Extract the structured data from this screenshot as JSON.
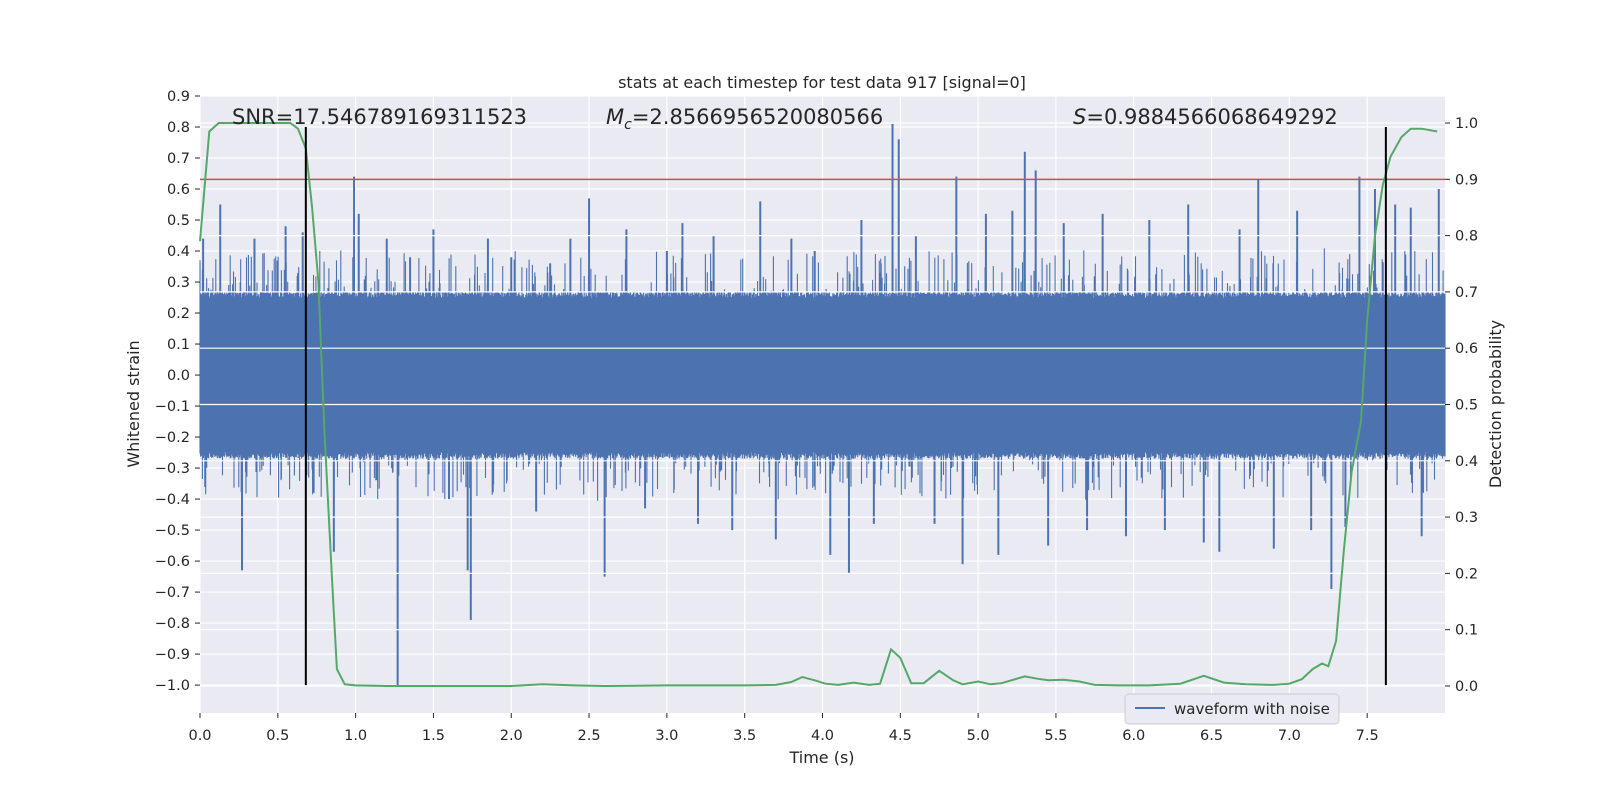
{
  "chart_data": {
    "type": "line",
    "title": "stats at each timestep for test data 917 [signal=0]",
    "xlabel": "Time (s)",
    "ylabel": "Whitened strain",
    "y2label": "Detection probability",
    "xlim": [
      0,
      8.0
    ],
    "ylim": [
      -1.09,
      0.9
    ],
    "y2lim": [
      -0.048,
      1.048
    ],
    "grid": true,
    "x_ticks": [
      0.0,
      0.5,
      1.0,
      1.5,
      2.0,
      2.5,
      3.0,
      3.5,
      4.0,
      4.5,
      5.0,
      5.5,
      6.0,
      6.5,
      7.0,
      7.5
    ],
    "x_tick_labels": [
      "0.0",
      "0.5",
      "1.0",
      "1.5",
      "2.0",
      "2.5",
      "3.0",
      "3.5",
      "4.0",
      "4.5",
      "5.0",
      "5.5",
      "6.0",
      "6.5",
      "7.0",
      "7.5"
    ],
    "y_ticks": [
      0.9,
      0.8,
      0.7,
      0.6,
      0.5,
      0.4,
      0.3,
      0.2,
      0.1,
      0.0,
      -0.1,
      -0.2,
      -0.3,
      -0.4,
      -0.5,
      -0.6,
      -0.7,
      -0.8,
      -0.9,
      -1.0
    ],
    "y_tick_labels": [
      "0.9",
      "0.8",
      "0.7",
      "0.6",
      "0.5",
      "0.4",
      "0.3",
      "0.2",
      "0.1",
      "0.0",
      "−0.1",
      "−0.2",
      "−0.3",
      "−0.4",
      "−0.5",
      "−0.6",
      "−0.7",
      "−0.8",
      "−0.9",
      "−1.0"
    ],
    "y2_ticks": [
      1.0,
      0.9,
      0.8,
      0.7,
      0.6,
      0.5,
      0.4,
      0.3,
      0.2,
      0.1,
      0.0
    ],
    "y2_tick_labels": [
      "1.0",
      "0.9",
      "0.8",
      "0.7",
      "0.6",
      "0.5",
      "0.4",
      "0.3",
      "0.2",
      "0.1",
      "0.0"
    ],
    "annotations": {
      "snr_label": "SNR=17.546789169311523",
      "mc_symbol": "M",
      "mc_subscript": "c",
      "mc_value": "=2.8566956520080566",
      "s_symbol": "S",
      "s_value": "=0.9884566068649292"
    },
    "threshold": {
      "axis": "y2",
      "value": 0.9,
      "color": "#c44e52"
    },
    "vertical_markers": {
      "x": [
        0.68,
        7.62
      ],
      "y_from": -1.0,
      "y_to": 0.8,
      "color": "#000000"
    },
    "legend": {
      "entries": [
        "waveform with noise"
      ],
      "location": "lower-right"
    },
    "waveform": {
      "name": "waveform with noise",
      "color": "#4c72b0",
      "band": 0.27,
      "spikes": [
        {
          "x": 0.02,
          "y": 0.44
        },
        {
          "x": 0.13,
          "y": 0.55
        },
        {
          "x": 0.27,
          "y": -0.63
        },
        {
          "x": 0.35,
          "y": 0.44
        },
        {
          "x": 0.55,
          "y": 0.48
        },
        {
          "x": 0.66,
          "y": 0.46
        },
        {
          "x": 0.73,
          "y": -0.38
        },
        {
          "x": 0.86,
          "y": -0.57
        },
        {
          "x": 0.99,
          "y": 0.64
        },
        {
          "x": 1.02,
          "y": 0.52
        },
        {
          "x": 1.27,
          "y": -1.0
        },
        {
          "x": 1.2,
          "y": 0.44
        },
        {
          "x": 1.35,
          "y": 0.38
        },
        {
          "x": 1.5,
          "y": 0.47
        },
        {
          "x": 1.6,
          "y": -0.4
        },
        {
          "x": 1.72,
          "y": -0.63
        },
        {
          "x": 1.74,
          "y": -0.79
        },
        {
          "x": 1.85,
          "y": 0.44
        },
        {
          "x": 2.0,
          "y": 0.38
        },
        {
          "x": 2.16,
          "y": -0.44
        },
        {
          "x": 2.25,
          "y": 0.36
        },
        {
          "x": 2.38,
          "y": 0.44
        },
        {
          "x": 2.5,
          "y": 0.57
        },
        {
          "x": 2.6,
          "y": -0.65
        },
        {
          "x": 2.74,
          "y": 0.47
        },
        {
          "x": 2.86,
          "y": -0.43
        },
        {
          "x": 3.0,
          "y": 0.4
        },
        {
          "x": 3.1,
          "y": 0.49
        },
        {
          "x": 3.2,
          "y": -0.48
        },
        {
          "x": 3.3,
          "y": 0.45
        },
        {
          "x": 3.42,
          "y": -0.5
        },
        {
          "x": 3.6,
          "y": 0.56
        },
        {
          "x": 3.7,
          "y": -0.53
        },
        {
          "x": 3.8,
          "y": 0.44
        },
        {
          "x": 3.95,
          "y": 0.4
        },
        {
          "x": 4.05,
          "y": -0.58
        },
        {
          "x": 4.17,
          "y": -0.64
        },
        {
          "x": 4.25,
          "y": 0.5
        },
        {
          "x": 4.33,
          "y": -0.48
        },
        {
          "x": 4.45,
          "y": 0.81
        },
        {
          "x": 4.49,
          "y": 0.76
        },
        {
          "x": 4.6,
          "y": 0.45
        },
        {
          "x": 4.72,
          "y": -0.48
        },
        {
          "x": 4.86,
          "y": 0.64
        },
        {
          "x": 4.9,
          "y": -0.61
        },
        {
          "x": 5.05,
          "y": 0.52
        },
        {
          "x": 5.13,
          "y": -0.58
        },
        {
          "x": 5.22,
          "y": 0.53
        },
        {
          "x": 5.3,
          "y": 0.72
        },
        {
          "x": 5.37,
          "y": 0.66
        },
        {
          "x": 5.45,
          "y": -0.55
        },
        {
          "x": 5.55,
          "y": 0.49
        },
        {
          "x": 5.7,
          "y": -0.5
        },
        {
          "x": 5.8,
          "y": 0.52
        },
        {
          "x": 5.95,
          "y": -0.52
        },
        {
          "x": 6.1,
          "y": 0.5
        },
        {
          "x": 6.2,
          "y": -0.5
        },
        {
          "x": 6.35,
          "y": 0.55
        },
        {
          "x": 6.45,
          "y": -0.54
        },
        {
          "x": 6.55,
          "y": -0.57
        },
        {
          "x": 6.68,
          "y": 0.47
        },
        {
          "x": 6.8,
          "y": 0.63
        },
        {
          "x": 6.9,
          "y": -0.56
        },
        {
          "x": 7.05,
          "y": 0.53
        },
        {
          "x": 7.14,
          "y": -0.5
        },
        {
          "x": 7.27,
          "y": -0.69
        },
        {
          "x": 7.36,
          "y": -0.49
        },
        {
          "x": 7.45,
          "y": 0.64
        },
        {
          "x": 7.55,
          "y": 0.6
        },
        {
          "x": 7.68,
          "y": 0.55
        },
        {
          "x": 7.78,
          "y": 0.54
        },
        {
          "x": 7.85,
          "y": -0.52
        },
        {
          "x": 7.96,
          "y": 0.6
        }
      ]
    },
    "series": [
      {
        "name": "detection probability",
        "axis": "y2",
        "color": "#55a868",
        "points": [
          [
            0.0,
            0.79
          ],
          [
            0.06,
            0.985
          ],
          [
            0.12,
            1.0
          ],
          [
            0.2,
            1.0
          ],
          [
            0.3,
            1.0
          ],
          [
            0.4,
            1.0
          ],
          [
            0.5,
            1.0
          ],
          [
            0.58,
            1.0
          ],
          [
            0.63,
            0.99
          ],
          [
            0.68,
            0.955
          ],
          [
            0.72,
            0.85
          ],
          [
            0.76,
            0.72
          ],
          [
            0.8,
            0.45
          ],
          [
            0.85,
            0.18
          ],
          [
            0.88,
            0.03
          ],
          [
            0.93,
            0.003
          ],
          [
            1.0,
            0.001
          ],
          [
            1.2,
            0.0
          ],
          [
            1.5,
            0.0
          ],
          [
            2.0,
            0.0
          ],
          [
            2.2,
            0.003
          ],
          [
            2.4,
            0.001
          ],
          [
            2.6,
            0.0
          ],
          [
            3.0,
            0.001
          ],
          [
            3.5,
            0.001
          ],
          [
            3.7,
            0.002
          ],
          [
            3.8,
            0.007
          ],
          [
            3.87,
            0.016
          ],
          [
            3.95,
            0.01
          ],
          [
            4.02,
            0.004
          ],
          [
            4.1,
            0.002
          ],
          [
            4.2,
            0.006
          ],
          [
            4.3,
            0.002
          ],
          [
            4.37,
            0.004
          ],
          [
            4.44,
            0.065
          ],
          [
            4.5,
            0.05
          ],
          [
            4.57,
            0.005
          ],
          [
            4.65,
            0.005
          ],
          [
            4.75,
            0.027
          ],
          [
            4.84,
            0.01
          ],
          [
            4.9,
            0.003
          ],
          [
            5.0,
            0.008
          ],
          [
            5.08,
            0.003
          ],
          [
            5.15,
            0.005
          ],
          [
            5.3,
            0.017
          ],
          [
            5.38,
            0.013
          ],
          [
            5.45,
            0.01
          ],
          [
            5.55,
            0.011
          ],
          [
            5.65,
            0.008
          ],
          [
            5.75,
            0.002
          ],
          [
            5.9,
            0.001
          ],
          [
            6.1,
            0.001
          ],
          [
            6.3,
            0.004
          ],
          [
            6.45,
            0.018
          ],
          [
            6.58,
            0.006
          ],
          [
            6.72,
            0.003
          ],
          [
            6.9,
            0.002
          ],
          [
            7.0,
            0.004
          ],
          [
            7.08,
            0.012
          ],
          [
            7.15,
            0.03
          ],
          [
            7.21,
            0.04
          ],
          [
            7.25,
            0.035
          ],
          [
            7.3,
            0.08
          ],
          [
            7.35,
            0.24
          ],
          [
            7.4,
            0.38
          ],
          [
            7.46,
            0.47
          ],
          [
            7.5,
            0.65
          ],
          [
            7.55,
            0.8
          ],
          [
            7.6,
            0.89
          ],
          [
            7.65,
            0.94
          ],
          [
            7.72,
            0.975
          ],
          [
            7.78,
            0.99
          ],
          [
            7.85,
            0.99
          ],
          [
            7.95,
            0.985
          ]
        ]
      }
    ]
  }
}
